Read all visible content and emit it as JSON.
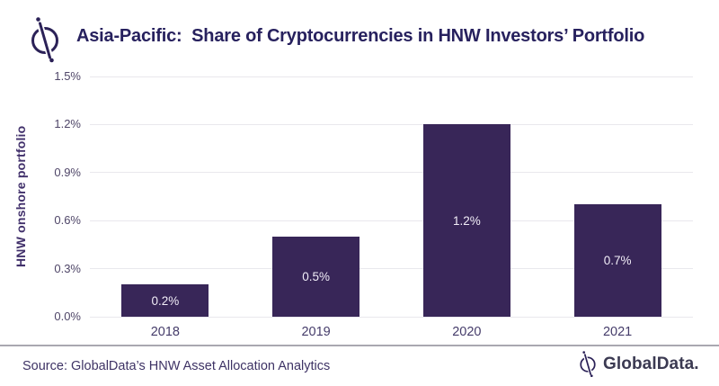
{
  "header": {
    "title": "Asia-Pacific:  Share of Cryptocurrencies in HNW Investors’ Portfolio"
  },
  "chart_data": {
    "type": "bar",
    "title": "Asia-Pacific: Share of Cryptocurrencies in HNW Investors’ Portfolio",
    "categories": [
      "2018",
      "2019",
      "2020",
      "2021"
    ],
    "values": [
      0.2,
      0.5,
      1.2,
      0.7
    ],
    "data_labels": [
      "0.2%",
      "0.5%",
      "1.2%",
      "0.7%"
    ],
    "xlabel": "",
    "ylabel": "HNW onshore portfolio",
    "ylim": [
      0,
      1.5
    ],
    "yticks": [
      "0.0%",
      "0.3%",
      "0.6%",
      "0.9%",
      "1.2%",
      "1.5%"
    ],
    "grid": true,
    "legend": false,
    "bar_color": "#382658",
    "bar_label_color": "#f1edf7"
  },
  "footer": {
    "source": "Source: GlobalData’s HNW Asset Allocation Analytics",
    "brand_wordmark": "GlobalData."
  },
  "colors": {
    "title_text": "#27215e",
    "axis_text": "#4f4668",
    "grid_line": "#e9e8ed",
    "divider": "#a9a8b0",
    "source_text": "#3e3365",
    "brand_navy": "#3b3a52",
    "logo_ink": "#2b2157"
  },
  "icons": {
    "header_logo": "globaldata-mark",
    "footer_logo": "globaldata-mark"
  }
}
